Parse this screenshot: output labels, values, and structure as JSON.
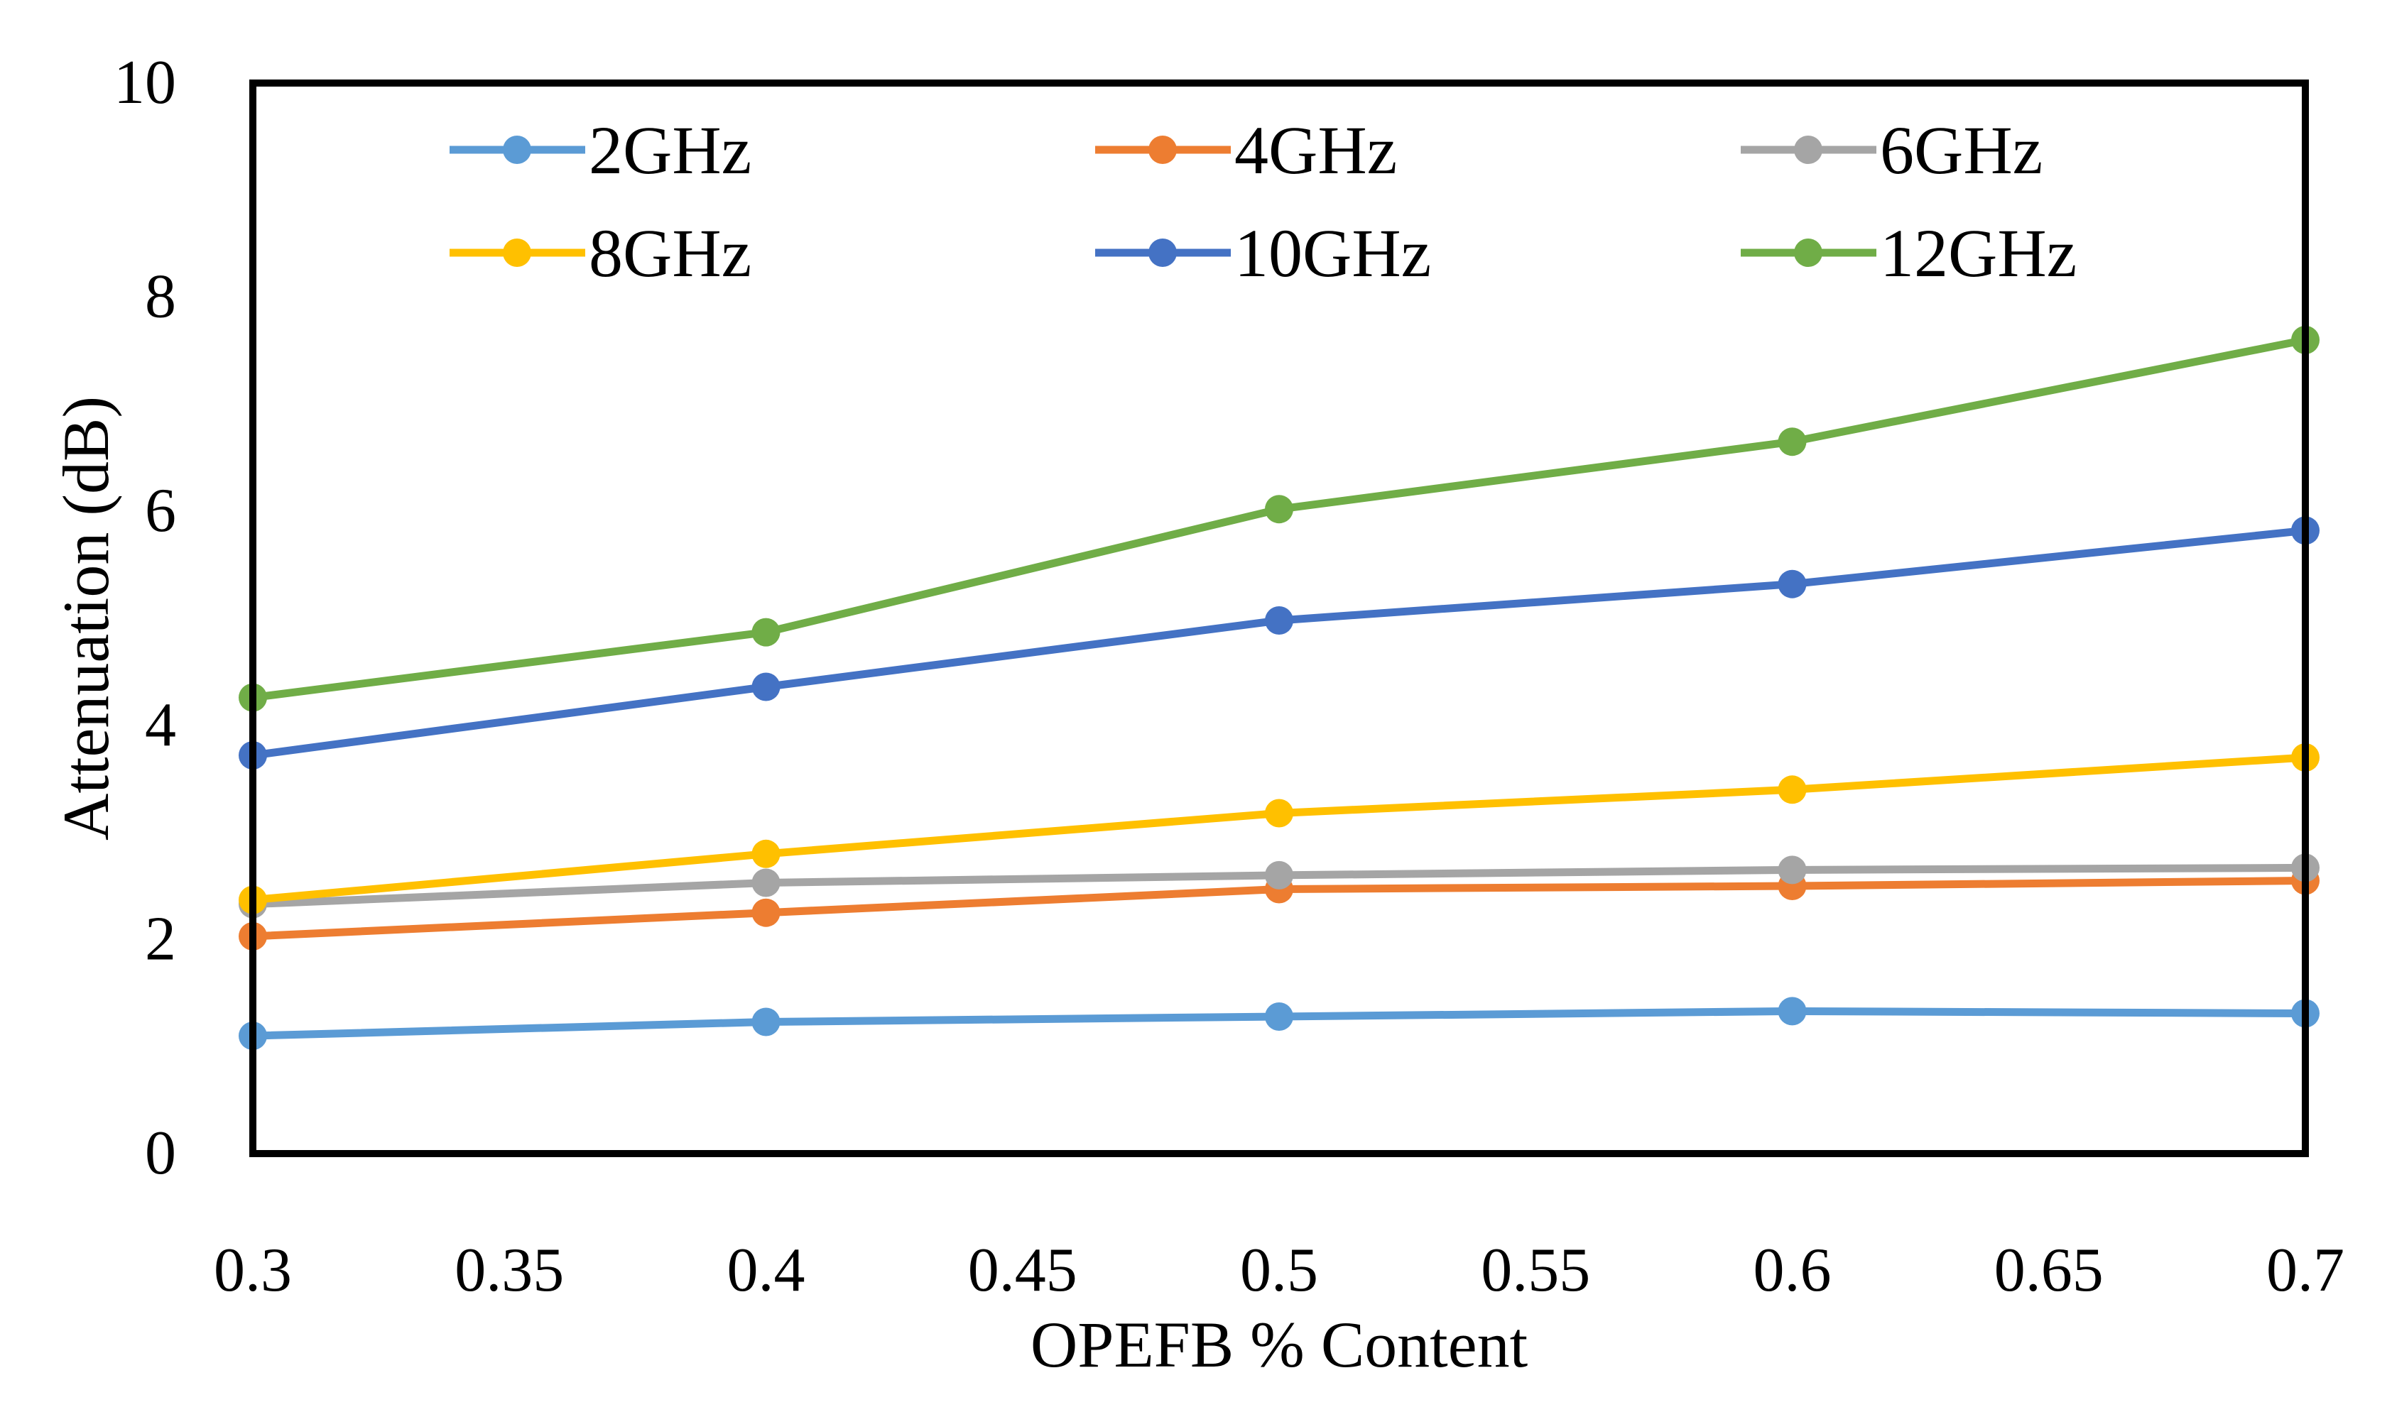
{
  "chart_data": {
    "type": "line",
    "title": "",
    "xlabel": "OPEFB % Content",
    "ylabel": "Attenuation (dB)",
    "xlim": [
      0.3,
      0.7
    ],
    "ylim": [
      0,
      10
    ],
    "x_ticks": [
      0.3,
      0.35,
      0.4,
      0.45,
      0.5,
      0.55,
      0.6,
      0.65,
      0.7
    ],
    "x_tick_labels": [
      "0.3",
      "0.35",
      "0.4",
      "0.45",
      "0.5",
      "0.55",
      "0.6",
      "0.65",
      "0.7"
    ],
    "y_ticks": [
      0,
      2,
      4,
      6,
      8,
      10
    ],
    "y_tick_labels": [
      "0",
      "2",
      "4",
      "6",
      "8",
      "10"
    ],
    "grid": false,
    "legend_position": "top",
    "x": [
      0.3,
      0.4,
      0.5,
      0.6,
      0.7
    ],
    "series": [
      {
        "name": "2GHz",
        "color": "#5B9BD5",
        "values": [
          1.1,
          1.23,
          1.28,
          1.33,
          1.31
        ]
      },
      {
        "name": "4GHz",
        "color": "#ED7D31",
        "values": [
          2.03,
          2.25,
          2.47,
          2.5,
          2.55
        ]
      },
      {
        "name": "6GHz",
        "color": "#A5A5A5",
        "values": [
          2.33,
          2.53,
          2.6,
          2.65,
          2.67
        ]
      },
      {
        "name": "8GHz",
        "color": "#FFC000",
        "values": [
          2.37,
          2.8,
          3.18,
          3.4,
          3.7
        ]
      },
      {
        "name": "10GHz",
        "color": "#4472C4",
        "values": [
          3.72,
          4.36,
          4.98,
          5.32,
          5.82
        ]
      },
      {
        "name": "12GHz",
        "color": "#70AD47",
        "values": [
          4.26,
          4.87,
          6.02,
          6.65,
          7.6
        ]
      }
    ]
  }
}
